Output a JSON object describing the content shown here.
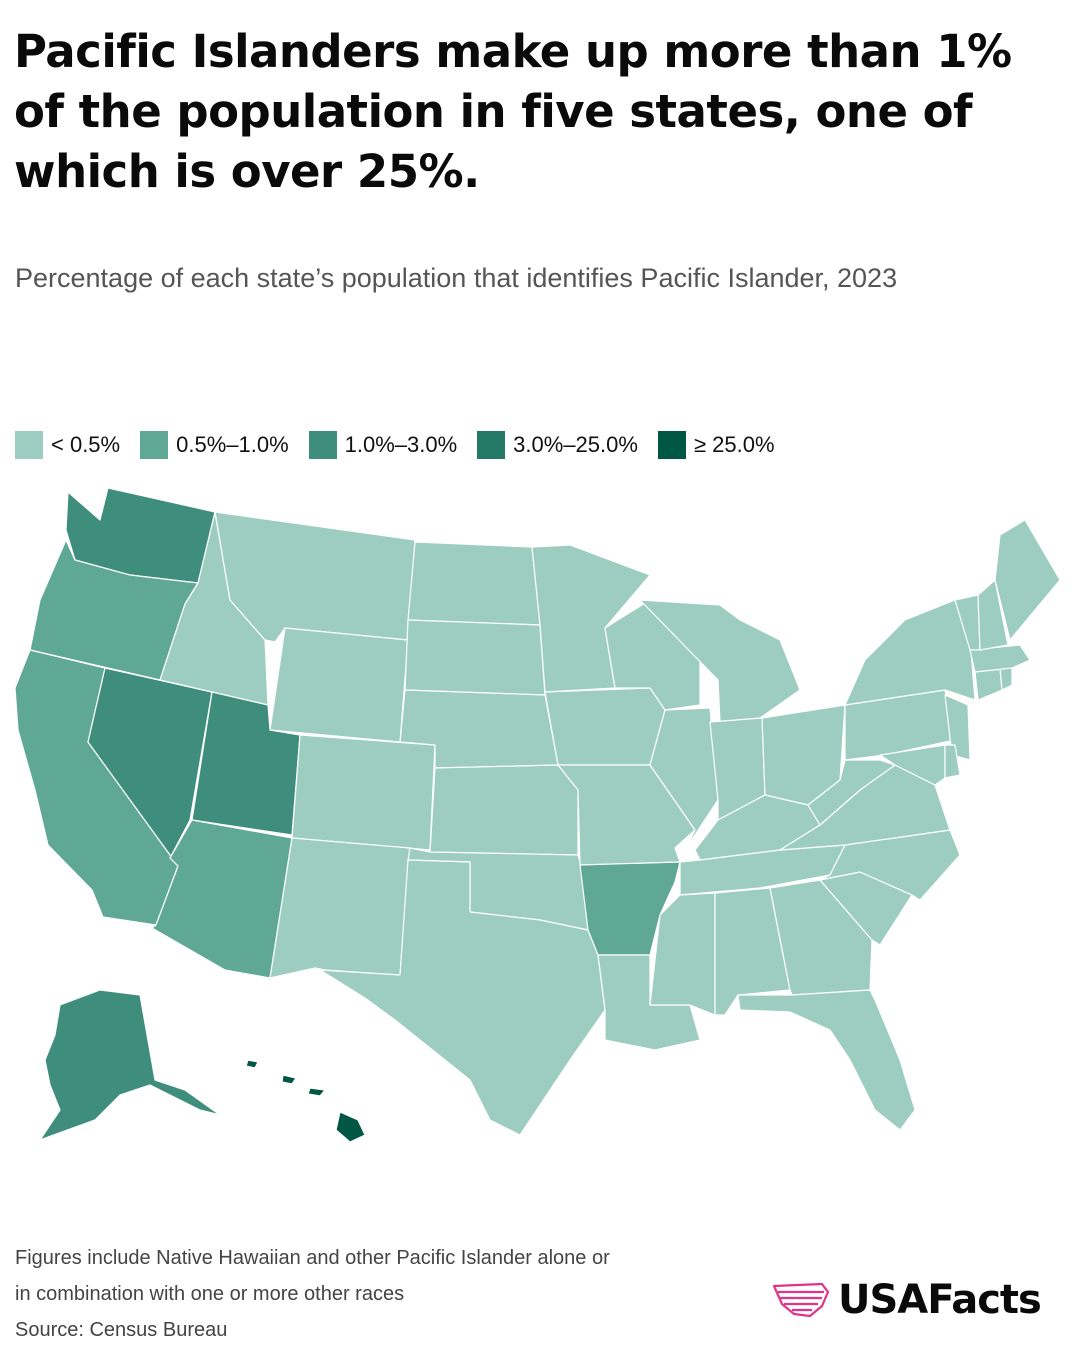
{
  "title": "Pacific Islanders make up more than 1% of the population in five states, one of which is over 25%.",
  "subtitle": "Percentage of each state’s population that identifies Pacific Islander, 2023",
  "legend": [
    {
      "label": "< 0.5%",
      "color": "#9ccdc0"
    },
    {
      "label": "0.5%–1.0%",
      "color": "#5fa896"
    },
    {
      "label": "1.0%–3.0%",
      "color": "#3f8e7d"
    },
    {
      "label": "3.0%–25.0%",
      "color": "#247a66"
    },
    {
      "label": "≥ 25.0%",
      "color": "#005844"
    }
  ],
  "map_data": {
    "type": "choropleth",
    "bins": [
      "< 0.5%",
      "0.5%–1.0%",
      "1.0%–3.0%",
      "3.0%–25.0%",
      "≥ 25.0%"
    ],
    "states": {
      "WA": "1.0%–3.0%",
      "OR": "0.5%–1.0%",
      "CA": "0.5%–1.0%",
      "NV": "1.0%–3.0%",
      "UT": "1.0%–3.0%",
      "AZ": "0.5%–1.0%",
      "AR": "0.5%–1.0%",
      "AK": "1.0%–3.0%",
      "HI": "≥ 25.0%",
      "ID": "< 0.5%",
      "MT": "< 0.5%",
      "WY": "< 0.5%",
      "CO": "< 0.5%",
      "NM": "< 0.5%",
      "ND": "< 0.5%",
      "SD": "< 0.5%",
      "NE": "< 0.5%",
      "KS": "< 0.5%",
      "OK": "< 0.5%",
      "TX": "< 0.5%",
      "MN": "< 0.5%",
      "IA": "< 0.5%",
      "MO": "< 0.5%",
      "LA": "< 0.5%",
      "WI": "< 0.5%",
      "IL": "< 0.5%",
      "MI": "< 0.5%",
      "IN": "< 0.5%",
      "OH": "< 0.5%",
      "KY": "< 0.5%",
      "TN": "< 0.5%",
      "MS": "< 0.5%",
      "AL": "< 0.5%",
      "GA": "< 0.5%",
      "FL": "< 0.5%",
      "SC": "< 0.5%",
      "NC": "< 0.5%",
      "VA": "< 0.5%",
      "WV": "< 0.5%",
      "PA": "< 0.5%",
      "NY": "< 0.5%",
      "VT": "< 0.5%",
      "NH": "< 0.5%",
      "ME": "< 0.5%",
      "MA": "< 0.5%",
      "RI": "< 0.5%",
      "CT": "< 0.5%",
      "NJ": "< 0.5%",
      "DE": "< 0.5%",
      "MD": "< 0.5%"
    }
  },
  "footnote": {
    "line1": "Figures include Native Hawaiian and other Pacific Islander alone or",
    "line2": "in combination with one or more other races",
    "source": "Source: Census Bureau"
  },
  "logo": {
    "text": "USAFacts",
    "icon": "usafacts-flag-map-icon",
    "color": "#e0338a"
  }
}
